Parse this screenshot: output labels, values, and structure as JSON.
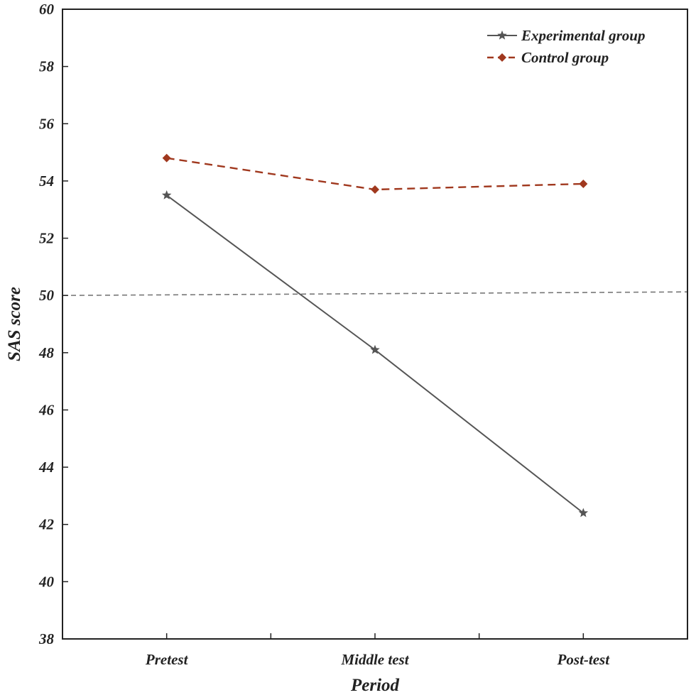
{
  "chart_data": {
    "type": "line",
    "xlabel": "Period",
    "ylabel": "SAS score",
    "categories": [
      "Pretest",
      "Middle test",
      "Post-test"
    ],
    "ylim": [
      38,
      60
    ],
    "yticks": [
      38,
      40,
      42,
      44,
      46,
      48,
      50,
      52,
      54,
      56,
      58,
      60
    ],
    "legend_position": "top-right",
    "series": [
      {
        "name": "Experimental group",
        "values": [
          53.5,
          48.1,
          42.4
        ],
        "color": "#555555",
        "line_style": "solid",
        "marker": "star"
      },
      {
        "name": "Control group",
        "values": [
          54.8,
          53.7,
          53.9
        ],
        "color": "#a0381e",
        "line_style": "dashed",
        "marker": "diamond"
      }
    ],
    "reference_line": {
      "value": 50,
      "color": "#777777",
      "line_style": "dashed"
    }
  }
}
